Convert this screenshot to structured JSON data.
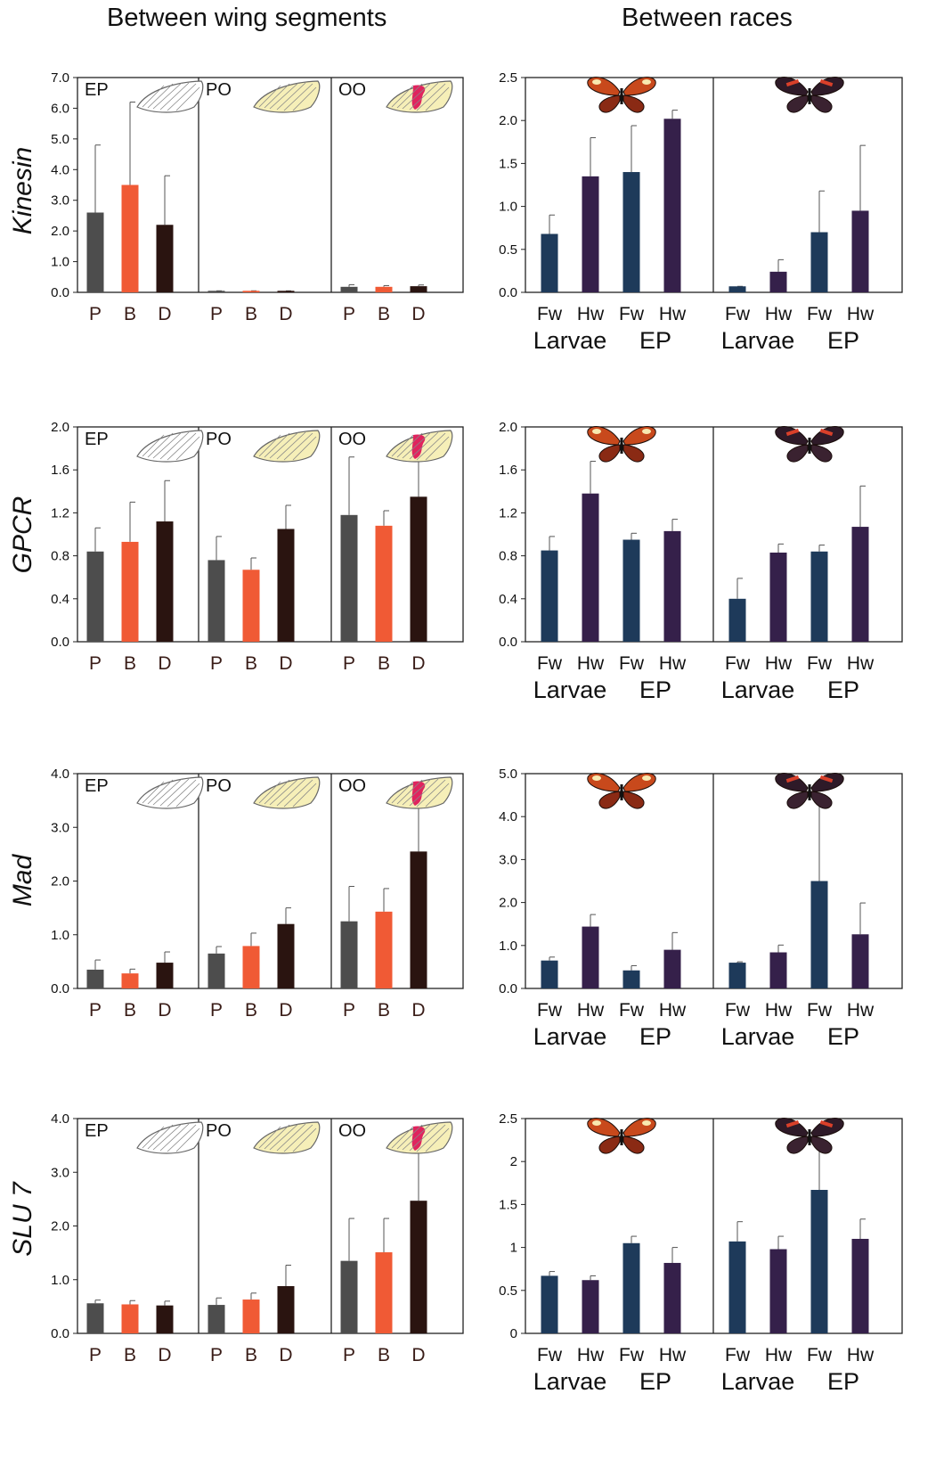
{
  "headers": {
    "left": "Between wing segments",
    "right": "Between races"
  },
  "colors": {
    "P": "#4d4d4d",
    "B": "#f05a35",
    "D": "#2a1410",
    "Fw": "#1e3a5a",
    "Hw": "#35204a"
  },
  "icons": {
    "EP": "white-wing-icon",
    "PO": "yellow-wing-icon",
    "OO": "red-band-wing-icon",
    "race1": "butterfly-race-1-icon",
    "race2": "butterfly-race-2-icon"
  },
  "chart_data": [
    {
      "type": "bar",
      "gene": "Kinesin",
      "side": "segments",
      "panels": [
        "EP",
        "PO",
        "OO"
      ],
      "categories": [
        "P",
        "B",
        "D"
      ],
      "yticks": [
        "0.0",
        "1.0",
        "2.0",
        "3.0",
        "4.0",
        "5.0",
        "6.0",
        "7.0"
      ],
      "ylim": [
        0,
        7
      ],
      "values": [
        [
          2.6,
          3.5,
          2.2
        ],
        [
          0.05,
          0.05,
          0.05
        ],
        [
          0.18,
          0.18,
          0.2
        ]
      ],
      "errors": [
        [
          4.8,
          6.2,
          3.8
        ],
        [
          0.05,
          0.05,
          0.05
        ],
        [
          0.25,
          0.22,
          0.24
        ]
      ]
    },
    {
      "type": "bar",
      "gene": "Kinesin",
      "side": "races",
      "categories": [
        "Fw",
        "Hw",
        "Fw",
        "Hw"
      ],
      "groups": [
        "Larvae",
        "EP"
      ],
      "yticks": [
        "0.0",
        "0.5",
        "1.0",
        "1.5",
        "2.0",
        "2.5"
      ],
      "ylim": [
        0,
        2.5
      ],
      "values": [
        [
          0.68,
          1.35,
          1.4,
          2.02
        ],
        [
          0.07,
          0.24,
          0.7,
          0.95
        ]
      ],
      "errors": [
        [
          0.9,
          1.8,
          1.94,
          2.12
        ],
        [
          0.07,
          0.38,
          1.18,
          1.71
        ]
      ]
    },
    {
      "type": "bar",
      "gene": "GPCR",
      "side": "segments",
      "panels": [
        "EP",
        "PO",
        "OO"
      ],
      "categories": [
        "P",
        "B",
        "D"
      ],
      "yticks": [
        "0.0",
        "0.4",
        "0.8",
        "1.2",
        "1.6",
        "2.0"
      ],
      "ylim": [
        0,
        2.0
      ],
      "values": [
        [
          0.84,
          0.93,
          1.12
        ],
        [
          0.76,
          0.67,
          1.05
        ],
        [
          1.18,
          1.08,
          1.35
        ]
      ],
      "errors": [
        [
          1.06,
          1.3,
          1.5
        ],
        [
          0.98,
          0.78,
          1.27
        ],
        [
          1.72,
          1.22,
          1.7
        ]
      ]
    },
    {
      "type": "bar",
      "gene": "GPCR",
      "side": "races",
      "categories": [
        "Fw",
        "Hw",
        "Fw",
        "Hw"
      ],
      "groups": [
        "Larvae",
        "EP"
      ],
      "yticks": [
        "0.0",
        "0.4",
        "0.8",
        "1.2",
        "1.6",
        "2.0"
      ],
      "ylim": [
        0,
        2.0
      ],
      "values": [
        [
          0.85,
          1.38,
          0.95,
          1.03
        ],
        [
          0.4,
          0.83,
          0.84,
          1.07
        ]
      ],
      "errors": [
        [
          0.98,
          1.68,
          1.01,
          1.14
        ],
        [
          0.59,
          0.91,
          0.9,
          1.45
        ]
      ]
    },
    {
      "type": "bar",
      "gene": "Mad",
      "side": "segments",
      "panels": [
        "EP",
        "PO",
        "OO"
      ],
      "categories": [
        "P",
        "B",
        "D"
      ],
      "yticks": [
        "0.0",
        "1.0",
        "2.0",
        "3.0",
        "4.0"
      ],
      "ylim": [
        0,
        4.0
      ],
      "values": [
        [
          0.35,
          0.28,
          0.48
        ],
        [
          0.65,
          0.79,
          1.2
        ],
        [
          1.25,
          1.43,
          2.55
        ]
      ],
      "errors": [
        [
          0.53,
          0.36,
          0.68
        ],
        [
          0.78,
          1.03,
          1.5
        ],
        [
          1.9,
          1.86,
          3.6
        ]
      ]
    },
    {
      "type": "bar",
      "gene": "Mad",
      "side": "races",
      "categories": [
        "Fw",
        "Hw",
        "Fw",
        "Hw"
      ],
      "groups": [
        "Larvae",
        "EP"
      ],
      "yticks": [
        "0.0",
        "1.0",
        "2.0",
        "3.0",
        "4.0",
        "5.0"
      ],
      "ylim": [
        0,
        5.0
      ],
      "values": [
        [
          0.65,
          1.44,
          0.42,
          0.9
        ],
        [
          0.6,
          0.84,
          2.5,
          1.26
        ]
      ],
      "errors": [
        [
          0.73,
          1.72,
          0.53,
          1.3
        ],
        [
          0.62,
          1.01,
          4.45,
          1.99
        ]
      ]
    },
    {
      "type": "bar",
      "gene": "SLU 7",
      "side": "segments",
      "panels": [
        "EP",
        "PO",
        "OO"
      ],
      "categories": [
        "P",
        "B",
        "D"
      ],
      "yticks": [
        "0.0",
        "1.0",
        "2.0",
        "3.0",
        "4.0"
      ],
      "ylim": [
        0,
        4.0
      ],
      "values": [
        [
          0.56,
          0.54,
          0.52
        ],
        [
          0.53,
          0.63,
          0.88
        ],
        [
          1.35,
          1.51,
          2.47
        ]
      ],
      "errors": [
        [
          0.62,
          0.61,
          0.6
        ],
        [
          0.66,
          0.75,
          1.27
        ],
        [
          2.14,
          2.14,
          3.6
        ]
      ]
    },
    {
      "type": "bar",
      "gene": "SLU 7",
      "side": "races",
      "categories": [
        "Fw",
        "Hw",
        "Fw",
        "Hw"
      ],
      "groups": [
        "Larvae",
        "EP"
      ],
      "yticks": [
        "0",
        "0.5",
        "1",
        "1.5",
        "2",
        "2.5"
      ],
      "ylim": [
        0,
        2.5
      ],
      "values": [
        [
          0.67,
          0.62,
          1.05,
          0.82
        ],
        [
          1.07,
          0.98,
          1.67,
          1.1
        ]
      ],
      "errors": [
        [
          0.72,
          0.67,
          1.13,
          1.0
        ],
        [
          1.3,
          1.13,
          2.13,
          1.33
        ]
      ]
    }
  ]
}
